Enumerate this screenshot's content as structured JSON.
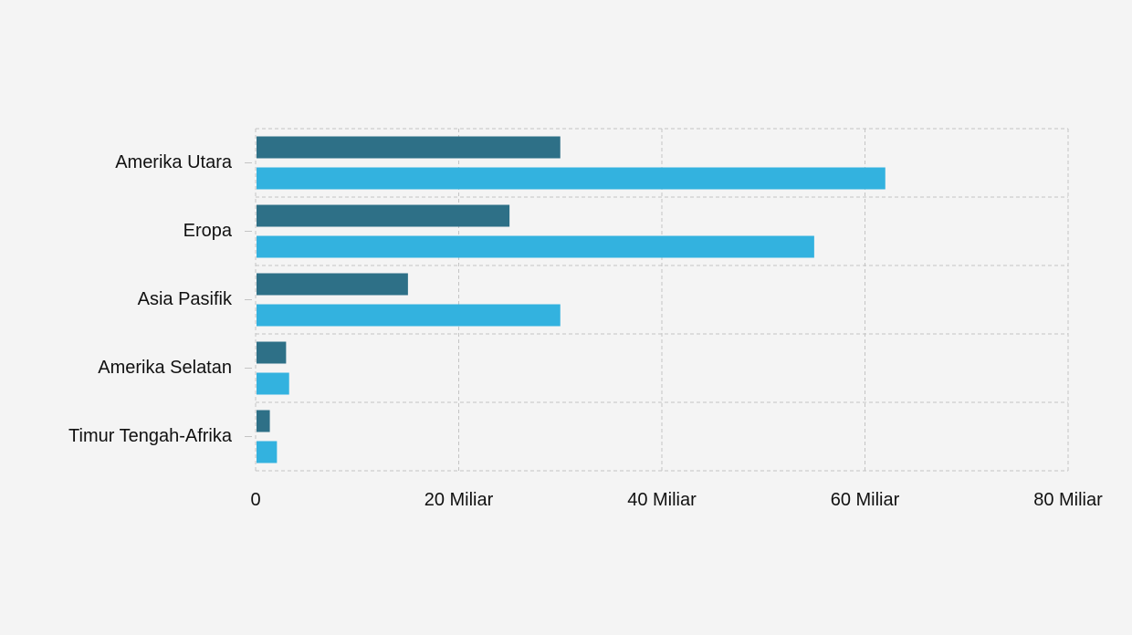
{
  "chart_data": {
    "type": "bar",
    "orientation": "horizontal",
    "categories": [
      "Amerika Utara",
      "Eropa",
      "Asia Pasifik",
      "Amerika Selatan",
      "Timur Tengah-Afrika"
    ],
    "series": [
      {
        "values": [
          30,
          25,
          15,
          3,
          1.4
        ],
        "color": "#2e7087"
      },
      {
        "values": [
          62,
          55,
          30,
          3.3,
          2.1
        ],
        "color": "#33b2df"
      }
    ],
    "x_ticks": [
      {
        "value": 0,
        "label": "0"
      },
      {
        "value": 20,
        "label": "20 Miliar"
      },
      {
        "value": 40,
        "label": "40 Miliar"
      },
      {
        "value": 60,
        "label": "60 Miliar"
      },
      {
        "value": 80,
        "label": "80 Miliar"
      }
    ],
    "xlim": [
      0,
      80
    ],
    "grid": true,
    "title": "",
    "xlabel": "",
    "ylabel": ""
  }
}
